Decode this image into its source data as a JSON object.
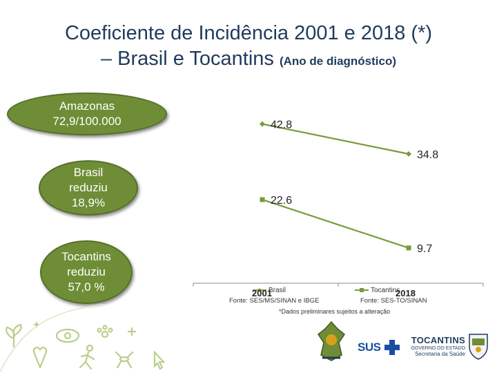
{
  "title": {
    "line1": "Coeficiente de Incidência 2001 e 2018 (*)",
    "line2": "– Brasil e Tocantins ",
    "line2_small": "(Ano de diagnóstico)"
  },
  "callouts": [
    {
      "text": "Amazonas\n72,9/100.000"
    },
    {
      "text": "Brasil\nreduziu\n18,9%"
    },
    {
      "text": "Tocantins\nreduziu\n57,0 %"
    }
  ],
  "chart_data": {
    "type": "line",
    "x": [
      "2001",
      "2018"
    ],
    "series": [
      {
        "name": "Brasil",
        "values": [
          42.8,
          34.8
        ],
        "color": "#7a9a3a",
        "marker": "diamond"
      },
      {
        "name": "Tocantins",
        "values": [
          22.6,
          9.7
        ],
        "color": "#7a9a3a",
        "marker": "square"
      }
    ],
    "data_labels": [
      "42.8",
      "34.8",
      "22.6",
      "9.7"
    ],
    "ylim": [
      0,
      50
    ],
    "grid": false,
    "legend": "bottom"
  },
  "sources": {
    "left": "Fonte: SES/MS/SINAN e IBGE",
    "right": "Fonte: SES-TO/SINAN",
    "note": "*Dados preliminares sujeitos a alteração"
  },
  "logos": {
    "sus": "SUS",
    "tocantins": "TOCANTINS",
    "gov_line1": "GOVERNO DO ESTADO",
    "gov_line2": "Secretaria da Saúde"
  },
  "colors": {
    "title": "#1f3b5c",
    "callout_fill": "#6e8d36",
    "line": "#7a9a3a",
    "sus_blue": "#1a4fa0",
    "tocantins_blue": "#1f3b5c"
  },
  "icons": [
    "pointer-icon",
    "ribbon-icon",
    "runner-icon",
    "mosquito-icon",
    "paw-icon",
    "eye-icon",
    "seedling-icon",
    "cross-icon"
  ]
}
